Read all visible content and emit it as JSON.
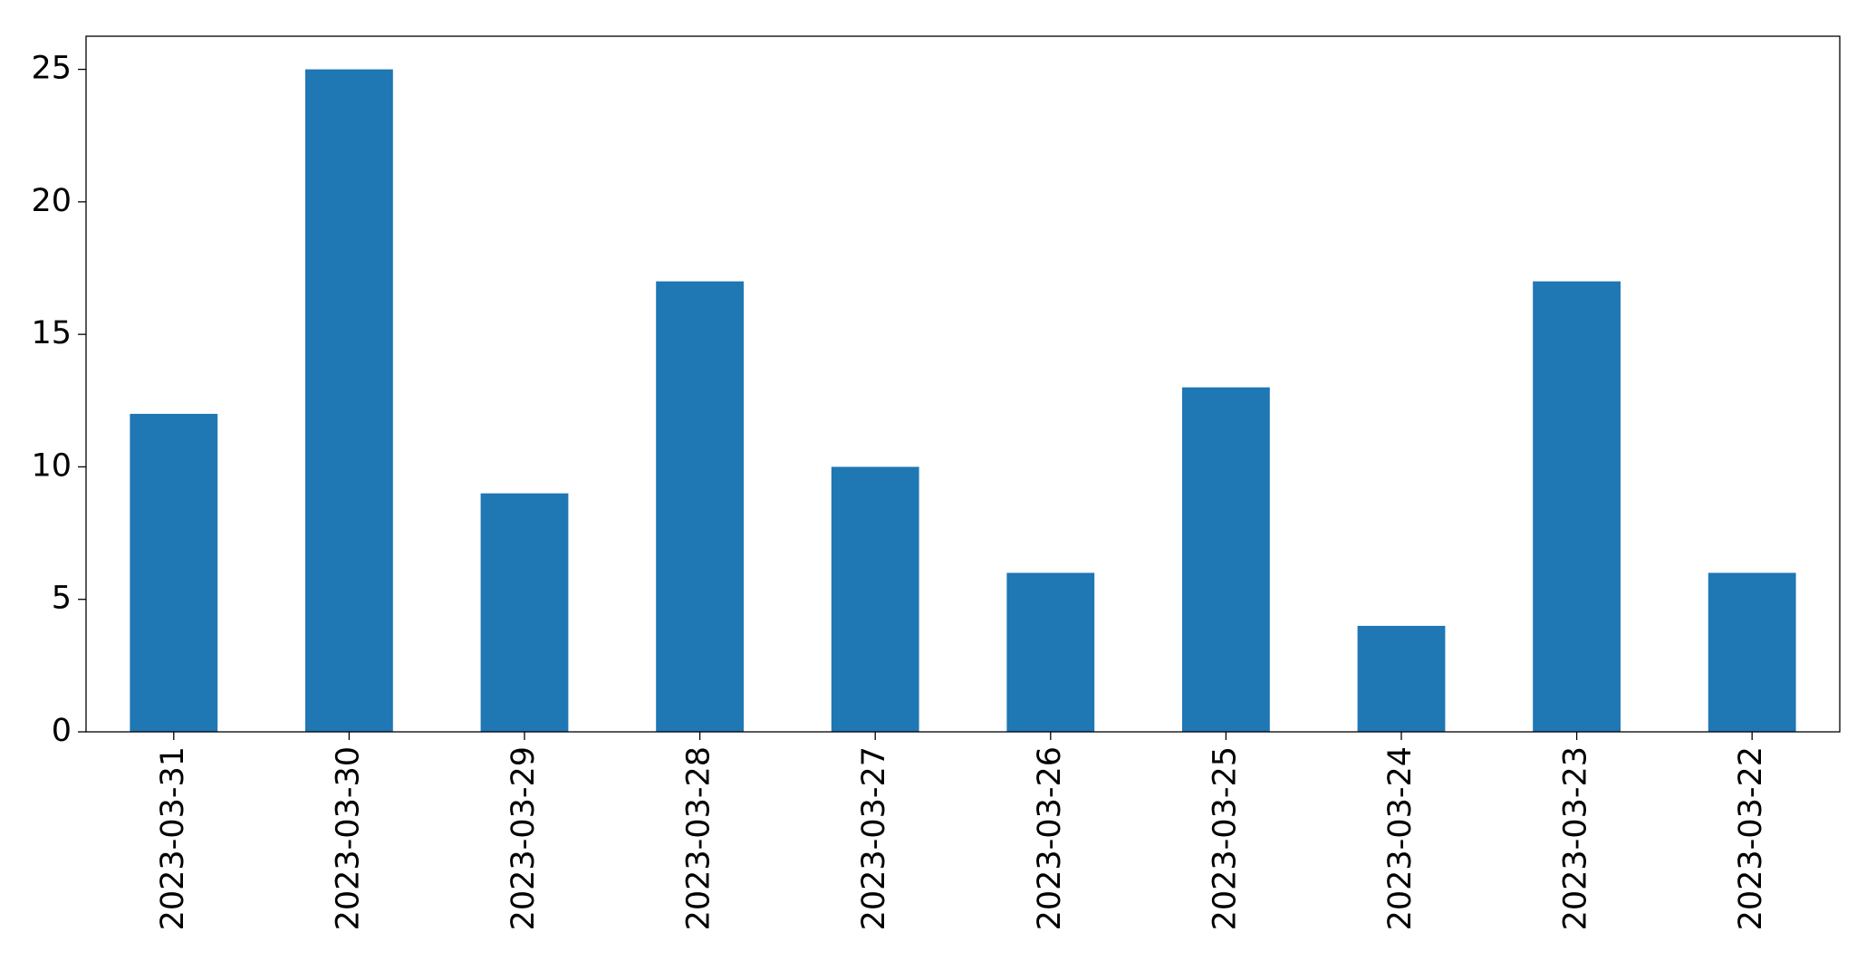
{
  "chart_data": {
    "type": "bar",
    "categories": [
      "2023-03-31",
      "2023-03-30",
      "2023-03-29",
      "2023-03-28",
      "2023-03-27",
      "2023-03-26",
      "2023-03-25",
      "2023-03-24",
      "2023-03-23",
      "2023-03-22"
    ],
    "values": [
      12,
      25,
      9,
      17,
      10,
      6,
      13,
      4,
      17,
      6
    ],
    "color": "#1f77b4",
    "ylim": [
      0,
      26.25
    ],
    "yticks": [
      0,
      5,
      10,
      15,
      20,
      25
    ],
    "grid": false
  }
}
